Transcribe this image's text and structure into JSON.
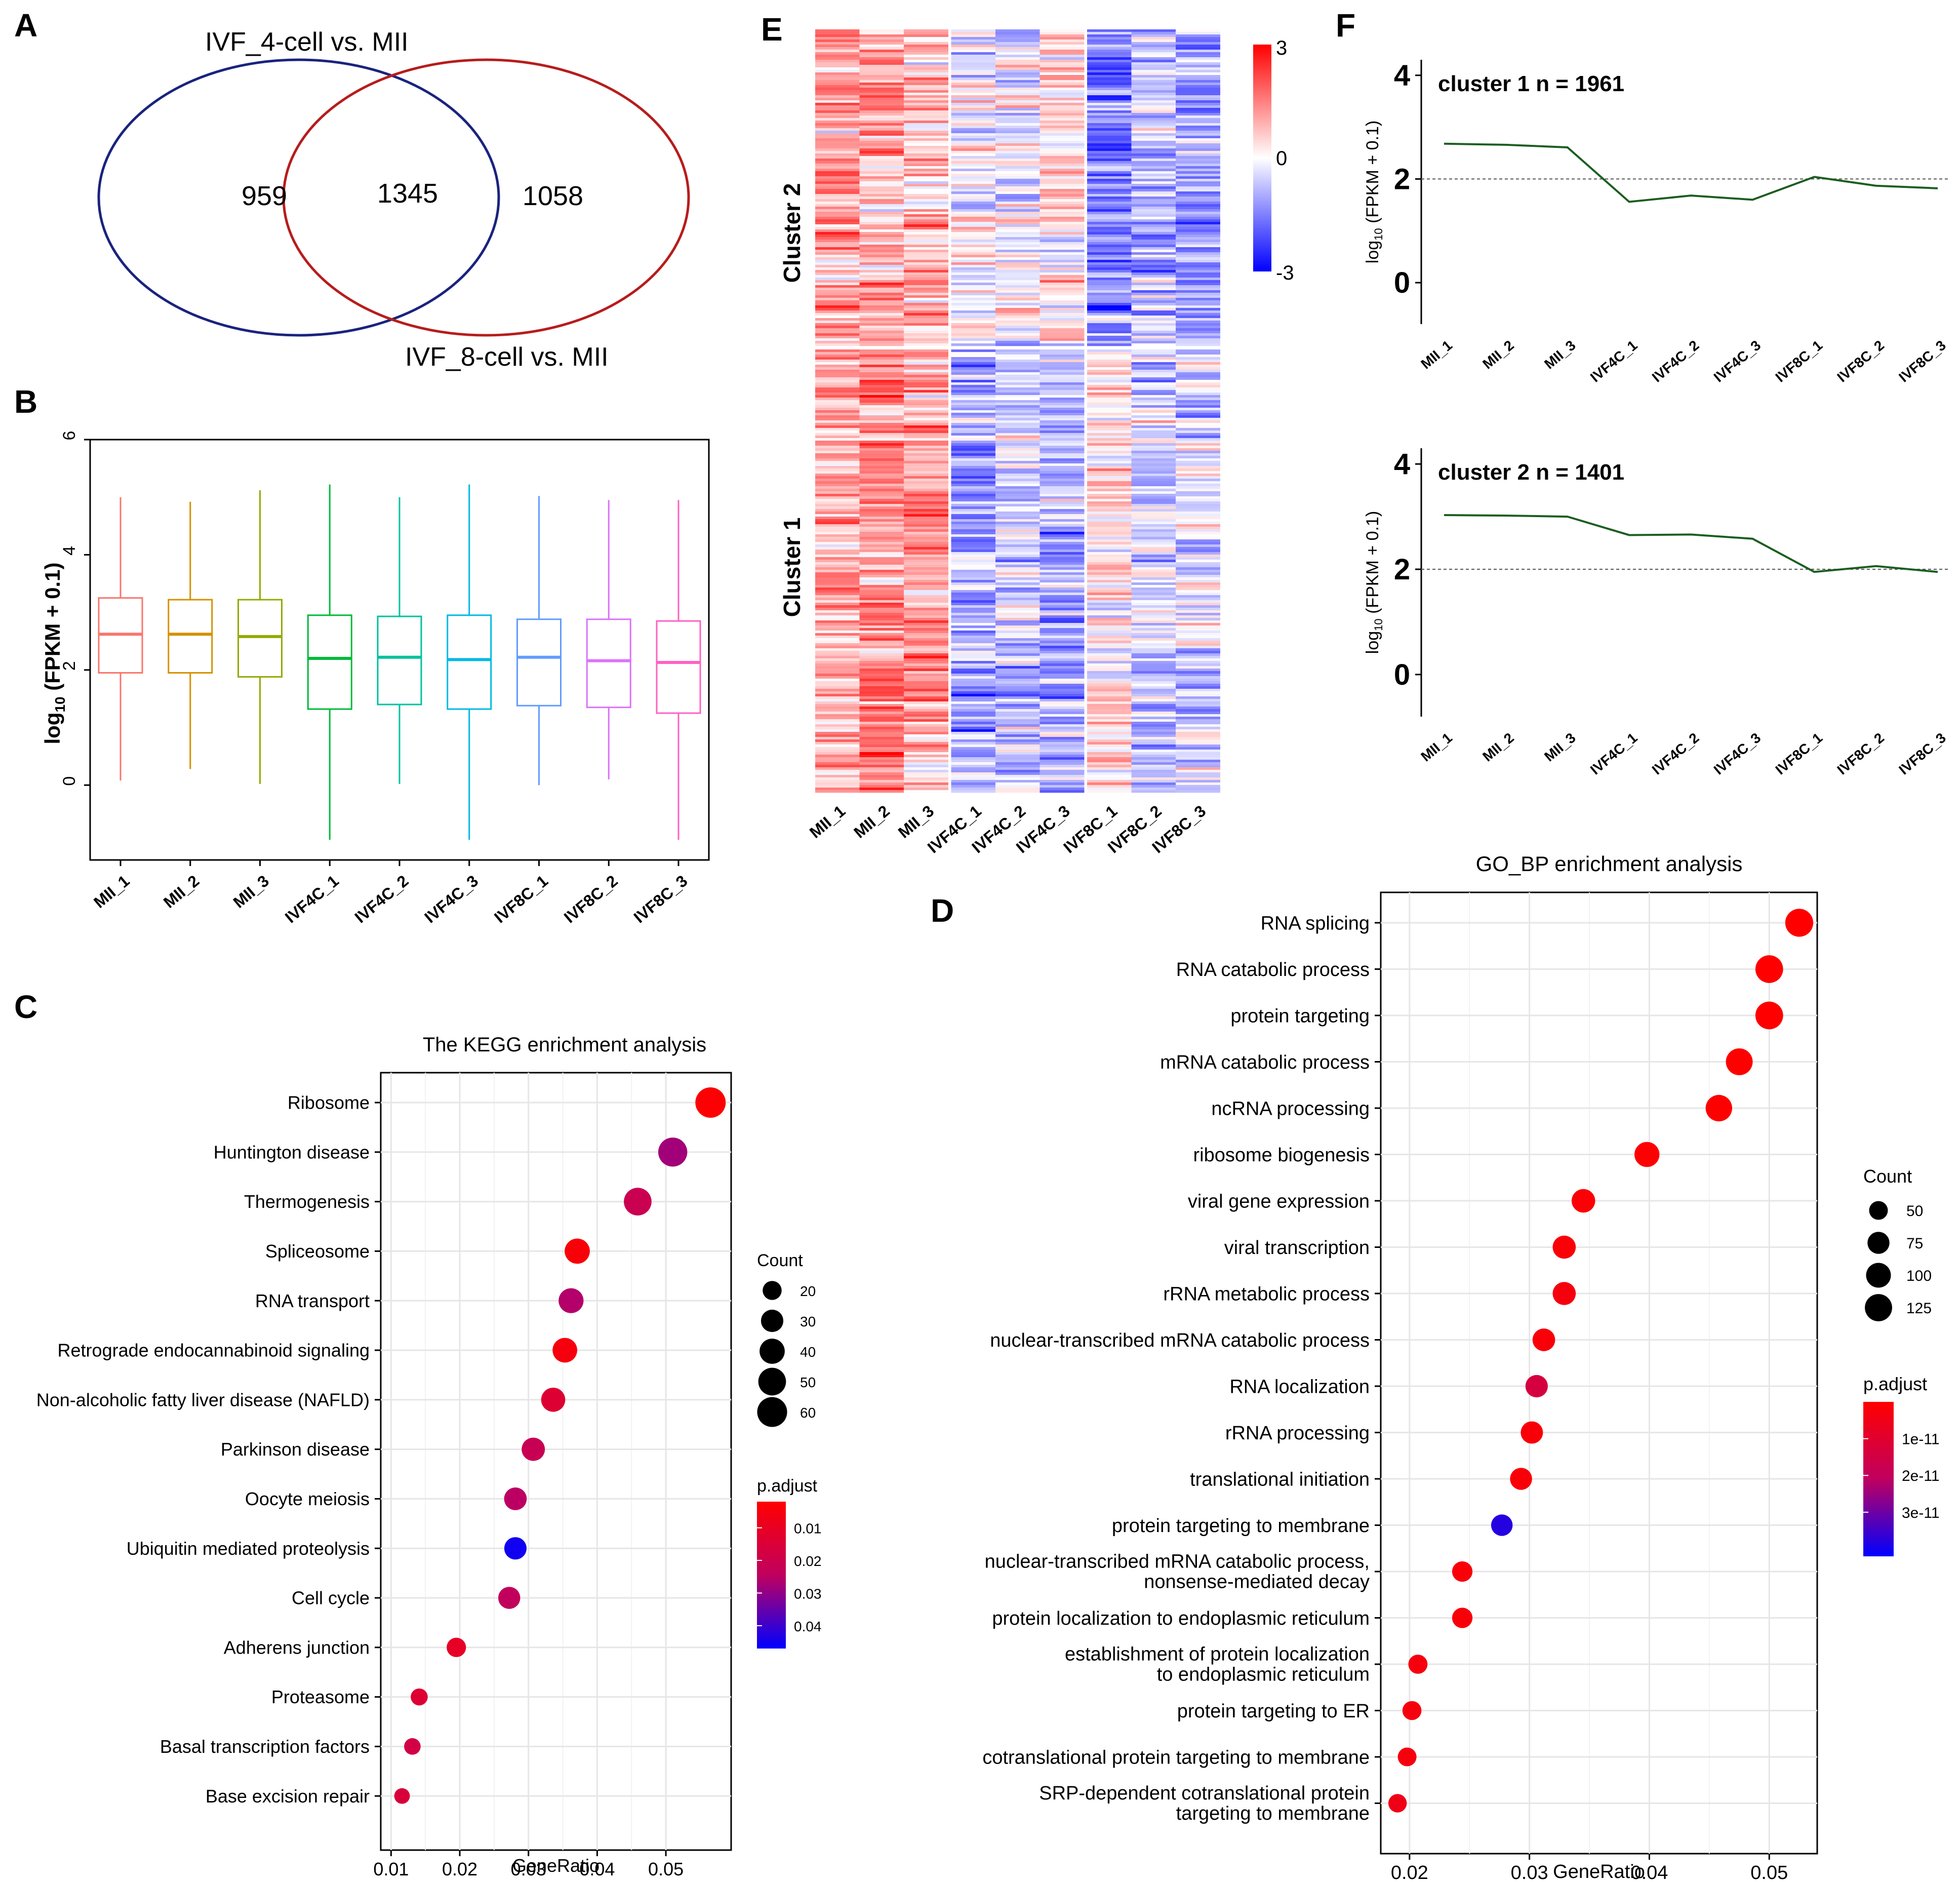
{
  "panels": {
    "A": {
      "label": "A",
      "set1_label": "IVF_4-cell vs. MII",
      "set2_label": "IVF_8-cell vs. MII",
      "only1": "959",
      "both": "1345",
      "only2": "1058",
      "colors": {
        "set1": "#1a237e",
        "set2": "#b71c1c"
      }
    },
    "B": {
      "label": "B"
    },
    "C": {
      "label": "C"
    },
    "D": {
      "label": "D"
    },
    "E": {
      "label": "E"
    },
    "F": {
      "label": "F"
    }
  },
  "colors": {
    "high": "#ff0000",
    "low": "#0000ff",
    "mid": "#ffffff",
    "line_green": "#1b5e20"
  },
  "chart_data": [
    {
      "id": "B",
      "type": "box",
      "ylabel": "log10 (FPKM + 0.1)",
      "ylim": [
        -1.3,
        6
      ],
      "yticks": [
        0,
        2,
        4,
        6
      ],
      "categories": [
        "MII_1",
        "MII_2",
        "MII_3",
        "IVF4C_1",
        "IVF4C_2",
        "IVF4C_3",
        "IVF8C_1",
        "IVF8C_2",
        "IVF8C_3"
      ],
      "colors": [
        "#f8766d",
        "#d39200",
        "#93aa00",
        "#00ba38",
        "#00c19f",
        "#00b9e3",
        "#619cff",
        "#db72fb",
        "#ff61c3"
      ],
      "boxes": [
        {
          "min": 0.08,
          "q1": 1.95,
          "median": 2.62,
          "q3": 3.25,
          "max": 5.0
        },
        {
          "min": 0.28,
          "q1": 1.95,
          "median": 2.62,
          "q3": 3.22,
          "max": 4.92
        },
        {
          "min": 0.02,
          "q1": 1.88,
          "median": 2.58,
          "q3": 3.22,
          "max": 5.12
        },
        {
          "min": -0.95,
          "q1": 1.32,
          "median": 2.2,
          "q3": 2.95,
          "max": 5.22
        },
        {
          "min": 0.02,
          "q1": 1.4,
          "median": 2.22,
          "q3": 2.93,
          "max": 5.0
        },
        {
          "min": -0.95,
          "q1": 1.32,
          "median": 2.18,
          "q3": 2.95,
          "max": 5.22
        },
        {
          "min": 0.0,
          "q1": 1.38,
          "median": 2.22,
          "q3": 2.88,
          "max": 5.02
        },
        {
          "min": 0.1,
          "q1": 1.35,
          "median": 2.16,
          "q3": 2.88,
          "max": 4.95
        },
        {
          "min": -0.95,
          "q1": 1.25,
          "median": 2.13,
          "q3": 2.85,
          "max": 4.95
        }
      ]
    },
    {
      "id": "C",
      "type": "scatter",
      "title": "The KEGG enrichment analysis",
      "xlabel": "GeneRatio",
      "xlim": [
        0.0085,
        0.0595
      ],
      "xticks": [
        "0.01",
        "0.02",
        "0.03",
        "0.04",
        "0.05"
      ],
      "categories": [
        "Ribosome",
        "Huntington disease",
        "Thermogenesis",
        "Spliceosome",
        "RNA transport",
        "Retrograde endocannabinoid signaling",
        "Non-alcoholic fatty liver disease (NAFLD)",
        "Parkinson disease",
        "Oocyte meiosis",
        "Ubiquitin mediated proteolysis",
        "Cell cycle",
        "Adherens junction",
        "Proteasome",
        "Basal transcription factors",
        "Base excision repair"
      ],
      "x": [
        0.0565,
        0.051,
        0.0459,
        0.0371,
        0.0362,
        0.0353,
        0.0336,
        0.0307,
        0.0281,
        0.0281,
        0.0272,
        0.0195,
        0.0141,
        0.0131,
        0.0116
      ],
      "count": [
        62,
        56,
        50,
        40,
        39,
        38,
        36,
        33,
        31,
        30,
        29,
        21,
        15,
        14,
        12
      ],
      "padjust": [
        0.003,
        0.028,
        0.021,
        0.004,
        0.026,
        0.005,
        0.014,
        0.022,
        0.025,
        0.045,
        0.024,
        0.011,
        0.014,
        0.018,
        0.016
      ],
      "size_legend": {
        "title": "Count",
        "values": [
          20,
          30,
          40,
          50,
          60
        ]
      },
      "color_legend": {
        "title": "p.adjust",
        "min": 0.002,
        "max": 0.047,
        "ticks": [
          "0.01",
          "0.02",
          "0.03",
          "0.04"
        ],
        "tick_values": [
          0.01,
          0.02,
          0.03,
          0.04
        ]
      }
    },
    {
      "id": "D",
      "type": "scatter",
      "title": "GO_BP enrichment analysis",
      "xlabel": "GeneRatio",
      "xlim": [
        0.0176,
        0.054
      ],
      "xticks": [
        "0.02",
        "0.03",
        "0.04",
        "0.05"
      ],
      "categories": [
        "RNA splicing",
        "RNA catabolic process",
        "protein targeting",
        "mRNA catabolic process",
        "ncRNA processing",
        "ribosome biogenesis",
        "viral gene expression",
        "viral transcription",
        "rRNA metabolic process",
        "nuclear-transcribed mRNA catabolic process",
        "RNA localization",
        "rRNA processing",
        "translational initiation",
        "protein targeting to membrane",
        "nuclear-transcribed mRNA catabolic process, nonsense-mediated decay",
        "protein localization to endoplasmic reticulum",
        "establishment of protein localization to endoplasmic reticulum",
        "protein targeting to ER",
        "cotranslational protein targeting to membrane",
        "SRP-dependent cotranslational protein targeting to membrane"
      ],
      "x": [
        0.0525,
        0.05,
        0.05,
        0.0475,
        0.0458,
        0.0398,
        0.0345,
        0.0329,
        0.0329,
        0.0312,
        0.0306,
        0.0302,
        0.0293,
        0.0277,
        0.0244,
        0.0244,
        0.0207,
        0.0202,
        0.0198,
        0.019
      ],
      "count": [
        133,
        130,
        130,
        120,
        117,
        102,
        88,
        84,
        84,
        80,
        78,
        77,
        75,
        71,
        62,
        62,
        53,
        52,
        50,
        48
      ],
      "padjust": [
        1e-13,
        1e-13,
        1e-13,
        1e-13,
        1e-13,
        2e-13,
        1e-12,
        1.5e-12,
        3e-12,
        2e-12,
        1.4e-11,
        2e-12,
        2e-12,
        3.8e-11,
        2e-12,
        2e-12,
        3e-12,
        3e-12,
        3e-12,
        5e-12
      ],
      "size_legend": {
        "title": "Count",
        "values": [
          50,
          75,
          100,
          125
        ]
      },
      "color_legend": {
        "title": "p.adjust",
        "min": 0,
        "max": 4.2e-11,
        "ticks": [
          "1e-11",
          "2e-11",
          "3e-11"
        ],
        "tick_values": [
          1e-11,
          2e-11,
          3e-11
        ]
      }
    },
    {
      "id": "E",
      "type": "heatmap",
      "columns": [
        "MII_1",
        "MII_2",
        "MII_3",
        "IVF4C_1",
        "IVF4C_2",
        "IVF4C_3",
        "IVF8C_1",
        "IVF8C_2",
        "IVF8C_3"
      ],
      "row_groups": [
        "Cluster 2",
        "Cluster 1"
      ],
      "scale": {
        "min": -3,
        "max": 3,
        "ticks": [
          "3",
          "0",
          "-3"
        ]
      },
      "group_means": {
        "Cluster 2": [
          1.1,
          0.95,
          0.75,
          -0.05,
          -0.3,
          0.2,
          -1.5,
          -0.7,
          -1.0
        ],
        "Cluster 1": [
          0.9,
          1.4,
          1.2,
          -0.9,
          -0.7,
          -0.9,
          0.3,
          -0.5,
          -0.4
        ]
      }
    },
    {
      "id": "F1",
      "type": "line",
      "title": "cluster 1 n = 1961",
      "ylabel": "log10 (FPKM + 0.1)",
      "ylim": [
        -0.8,
        4.3
      ],
      "yticks": [
        0,
        2,
        4
      ],
      "reference_line": 2,
      "categories": [
        "MII_1",
        "MII_2",
        "MII_3",
        "IVF4C_1",
        "IVF4C_2",
        "IVF4C_3",
        "IVF8C_1",
        "IVF8C_2",
        "IVF8C_3"
      ],
      "values": [
        2.68,
        2.66,
        2.61,
        1.56,
        1.68,
        1.6,
        2.04,
        1.87,
        1.82
      ]
    },
    {
      "id": "F2",
      "type": "line",
      "title": "cluster 2 n = 1401",
      "ylabel": "log10 (FPKM + 0.1)",
      "ylim": [
        -0.8,
        4.3
      ],
      "yticks": [
        0,
        2,
        4
      ],
      "reference_line": 2,
      "categories": [
        "MII_1",
        "MII_2",
        "MII_3",
        "IVF4C_1",
        "IVF4C_2",
        "IVF4C_3",
        "IVF8C_1",
        "IVF8C_2",
        "IVF8C_3"
      ],
      "values": [
        3.03,
        3.02,
        3.0,
        2.65,
        2.66,
        2.58,
        1.95,
        2.06,
        1.95
      ]
    }
  ]
}
